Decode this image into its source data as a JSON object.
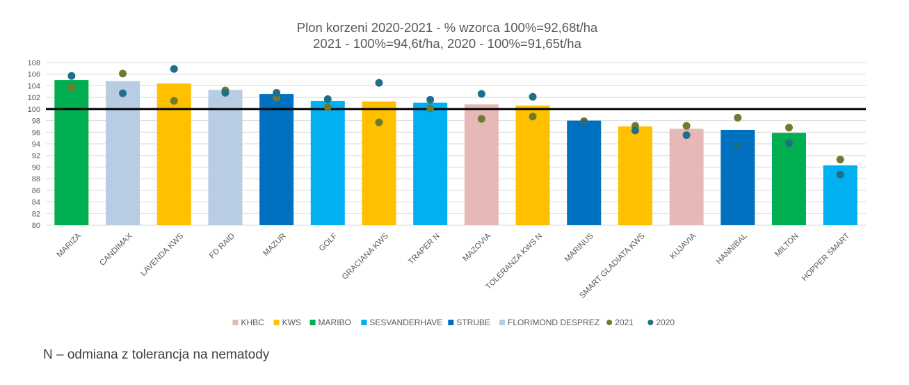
{
  "chart_data": {
    "type": "bar",
    "title": "Plon korzeni 2020-2021 - % wzorca 100%=92,68t/ha",
    "subtitle": "2021 - 100%=94,6t/ha, 2020 - 100%=91,65t/ha",
    "categories": [
      "MARIZA",
      "CANDIMAX",
      "LAVENDA KWS",
      "FD RAID",
      "MAZUR",
      "GOLF",
      "GRACIANA KWS",
      "TRAPER N",
      "MAZOVIA",
      "TOLERANZA KWS N",
      "MARINUS",
      "SMART GLADIATA KWS",
      "KUJAVIA",
      "HANNIBAL",
      "MILTON",
      "HOPPER SMART"
    ],
    "values": [
      105.0,
      104.8,
      104.4,
      103.3,
      102.6,
      101.4,
      101.3,
      101.1,
      100.8,
      100.6,
      98.0,
      97.0,
      96.6,
      96.4,
      95.9,
      90.3
    ],
    "bar_groups": [
      "MARIBO",
      "FLORIMOND DESPREZ",
      "KWS",
      "FLORIMOND DESPREZ",
      "STRUBE",
      "SESVANDERHAVE",
      "KWS",
      "SESVANDERHAVE",
      "KHBC",
      "KWS",
      "STRUBE",
      "KWS",
      "KHBC",
      "STRUBE",
      "MARIBO",
      "SESVANDERHAVE"
    ],
    "groups": [
      {
        "name": "KHBC",
        "color": "#E6B8B7"
      },
      {
        "name": "KWS",
        "color": "#FFC000"
      },
      {
        "name": "MARIBO",
        "color": "#00B050"
      },
      {
        "name": "SESVANDERHAVE",
        "color": "#00B0F0"
      },
      {
        "name": "STRUBE",
        "color": "#0070C0"
      },
      {
        "name": "FLORIMOND DESPREZ",
        "color": "#B8CCE4"
      }
    ],
    "series": [
      {
        "name": "2021",
        "type": "scatter",
        "color": "#6E7B2E",
        "values": [
          103.7,
          106.1,
          101.4,
          103.2,
          101.9,
          100.3,
          97.7,
          100.1,
          98.3,
          98.7,
          97.9,
          97.1,
          97.1,
          98.5,
          96.8,
          91.3
        ]
      },
      {
        "name": "2020",
        "type": "scatter",
        "color": "#1F6F8B",
        "values": [
          105.7,
          102.7,
          106.9,
          102.8,
          102.8,
          101.7,
          104.5,
          101.6,
          102.6,
          102.1,
          97.6,
          96.3,
          95.5,
          93.6,
          94.1,
          88.7
        ]
      }
    ],
    "reference_line": 100,
    "ylim": [
      80,
      108
    ],
    "yticks": [
      "80",
      "82",
      "84",
      "86",
      "88",
      "90",
      "92",
      "94",
      "96",
      "98",
      "100",
      "102",
      "104",
      "106",
      "108"
    ],
    "xlabel": "",
    "ylabel": "",
    "grid": true,
    "legend_position": "bottom"
  },
  "footnote": "N – odmiana z tolerancja na nematody"
}
